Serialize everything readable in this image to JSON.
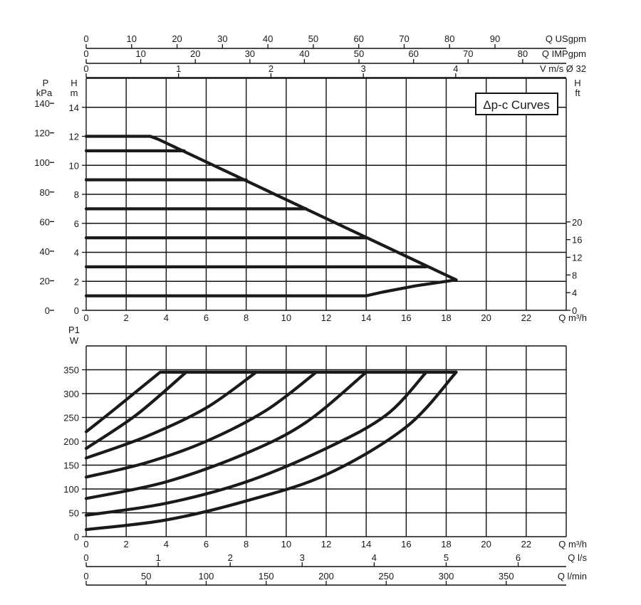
{
  "chart_data": [
    {
      "type": "line",
      "title": "Δp-c Curves",
      "xlabel": "Q m³/h",
      "x_ticks": [
        "0",
        "2",
        "4",
        "6",
        "8",
        "10",
        "12",
        "14",
        "16",
        "18",
        "20",
        "22"
      ],
      "xlim": [
        0,
        24
      ],
      "ylabel_left_primary": "H m",
      "ylabel_left_secondary": "P kPa",
      "ylabel_right": "H ft",
      "y_ticks_m": [
        "0",
        "2",
        "4",
        "6",
        "8",
        "10",
        "12",
        "14"
      ],
      "y_ticks_kpa": [
        "0",
        "20",
        "40",
        "60",
        "80",
        "100",
        "120",
        "140"
      ],
      "y_ticks_ft": [
        "0",
        "4",
        "8",
        "12",
        "16",
        "20"
      ],
      "ylim": [
        0,
        16
      ],
      "top_axes": [
        {
          "label": "Q USgpm",
          "ticks": [
            "0",
            "10",
            "20",
            "30",
            "40",
            "50",
            "60",
            "70",
            "80",
            "90"
          ],
          "per_m3h": 4.403
        },
        {
          "label": "Q IMPgpm",
          "ticks": [
            "0",
            "10",
            "20",
            "30",
            "40",
            "50",
            "60",
            "70",
            "80"
          ],
          "per_m3h": 3.666
        },
        {
          "label": "V m/s Ø 32",
          "ticks": [
            "0",
            "1",
            "2",
            "3",
            "4"
          ],
          "per_m3h": 0.2165
        }
      ],
      "series": [
        {
          "x": [
            0,
            3.2,
            3.6,
            18.5
          ],
          "y": [
            12,
            12,
            11.8,
            2.1
          ]
        },
        {
          "x": [
            0,
            4.9
          ],
          "y": [
            11,
            11
          ]
        },
        {
          "x": [
            0,
            8
          ],
          "y": [
            9,
            9
          ]
        },
        {
          "x": [
            0,
            11
          ],
          "y": [
            7,
            7
          ]
        },
        {
          "x": [
            0,
            14
          ],
          "y": [
            5,
            5
          ]
        },
        {
          "x": [
            0,
            17
          ],
          "y": [
            3,
            3
          ]
        },
        {
          "x": [
            0,
            14,
            14.8,
            16.5,
            18.5
          ],
          "y": [
            1,
            1,
            1.25,
            1.7,
            2.1
          ]
        }
      ],
      "grid": true
    },
    {
      "type": "line",
      "xlabel": "Q m³/h",
      "x_ticks": [
        "0",
        "2",
        "4",
        "6",
        "8",
        "10",
        "12",
        "14",
        "16",
        "18",
        "20",
        "22"
      ],
      "xlim": [
        0,
        24
      ],
      "ylabel": "P1 W",
      "y_ticks": [
        "0",
        "50",
        "100",
        "150",
        "200",
        "250",
        "300",
        "350"
      ],
      "ylim": [
        0,
        400
      ],
      "bottom_axes": [
        {
          "label": "Q l/s",
          "ticks": [
            "0",
            "1",
            "2",
            "3",
            "4",
            "5",
            "6"
          ],
          "per_m3h": 0.2778
        },
        {
          "label": "Q l/min",
          "ticks": [
            "0",
            "50",
            "100",
            "150",
            "200",
            "250",
            "300",
            "350"
          ],
          "per_m3h": 16.667
        }
      ],
      "series": [
        {
          "x": [
            0,
            1.5,
            3.7,
            18.5
          ],
          "y": [
            220,
            270,
            345,
            345
          ]
        },
        {
          "x": [
            0,
            2.5,
            5
          ],
          "y": [
            185,
            255,
            345
          ]
        },
        {
          "x": [
            0,
            3,
            6,
            8.5
          ],
          "y": [
            165,
            210,
            270,
            345
          ]
        },
        {
          "x": [
            0,
            3,
            6,
            9,
            11.5
          ],
          "y": [
            125,
            155,
            200,
            265,
            345
          ]
        },
        {
          "x": [
            0,
            4,
            8,
            11,
            14
          ],
          "y": [
            80,
            115,
            175,
            240,
            345
          ]
        },
        {
          "x": [
            0,
            4,
            8,
            12,
            15,
            17
          ],
          "y": [
            45,
            70,
            115,
            185,
            255,
            345
          ]
        },
        {
          "x": [
            0,
            4,
            8,
            12,
            16,
            18.5
          ],
          "y": [
            15,
            35,
            75,
            130,
            230,
            345
          ]
        }
      ],
      "grid": true
    }
  ]
}
